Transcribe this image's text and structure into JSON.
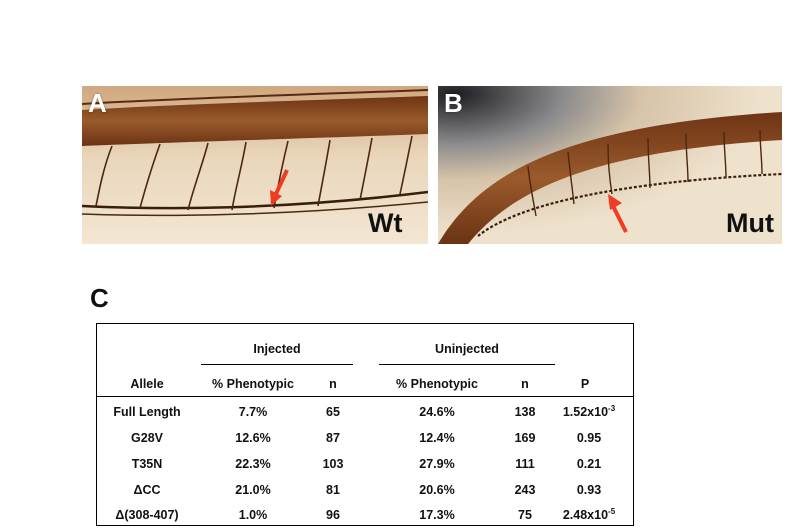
{
  "panels": {
    "a": {
      "letter": "A",
      "tag": "Wt"
    },
    "b": {
      "letter": "B",
      "tag": "Mut"
    },
    "c": {
      "letter": "C"
    }
  },
  "colors": {
    "background_tissue": "#e8d7bd",
    "vessel": "#3a1e0c",
    "dorsal_aorta_band": "#8b4a22",
    "arrow": "#ee3b22"
  },
  "table": {
    "group_headers": {
      "injected": "Injected",
      "uninjected": "Uninjected"
    },
    "columns": {
      "allele": "Allele",
      "inj_pct": "% Phenotypic",
      "inj_n": "n",
      "uninj_pct": "% Phenotypic",
      "uninj_n": "n",
      "p": "P"
    },
    "rows": [
      {
        "allele": "Full Length",
        "inj_pct": "7.7%",
        "inj_n": "65",
        "uninj_pct": "24.6%",
        "uninj_n": "138",
        "p_base": "1.52x10",
        "p_exp": "-3"
      },
      {
        "allele": "G28V",
        "inj_pct": "12.6%",
        "inj_n": "87",
        "uninj_pct": "12.4%",
        "uninj_n": "169",
        "p_base": "0.95",
        "p_exp": ""
      },
      {
        "allele": "T35N",
        "inj_pct": "22.3%",
        "inj_n": "103",
        "uninj_pct": "27.9%",
        "uninj_n": "111",
        "p_base": "0.21",
        "p_exp": ""
      },
      {
        "allele": "ΔCC",
        "inj_pct": "21.0%",
        "inj_n": "81",
        "uninj_pct": "20.6%",
        "uninj_n": "243",
        "p_base": "0.93",
        "p_exp": ""
      },
      {
        "allele": "Δ(308-407)",
        "inj_pct": "1.0%",
        "inj_n": "96",
        "uninj_pct": "17.3%",
        "uninj_n": "75",
        "p_base": "2.48x10",
        "p_exp": "-5"
      }
    ]
  }
}
